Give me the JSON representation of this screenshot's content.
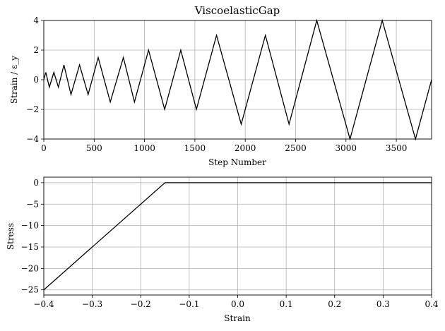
{
  "chart_data": [
    {
      "type": "line",
      "title": "ViscoelasticGap",
      "xlabel": "Step Number",
      "ylabel": "Strain / ε_y",
      "xlim": [
        0,
        3850
      ],
      "ylim": [
        -4,
        4
      ],
      "xticks": [
        0,
        500,
        1000,
        1500,
        2000,
        2500,
        3000,
        3500
      ],
      "yticks": [
        -4,
        -2,
        0,
        2,
        4
      ],
      "xtick_labels": [
        "0",
        "500",
        "1000",
        "1500",
        "2000",
        "2500",
        "3000",
        "3500"
      ],
      "ytick_labels": [
        "−4",
        "−2",
        "0",
        "2",
        "4"
      ],
      "grid": true,
      "series": [
        {
          "x": [
            0,
            20,
            55,
            100,
            145,
            200,
            270,
            355,
            440,
            540,
            660,
            790,
            900,
            1040,
            1200,
            1360,
            1515,
            1715,
            1960,
            2200,
            2435,
            2710,
            3040,
            3360,
            3690,
            3850
          ],
          "y": [
            0,
            0.5,
            -0.5,
            0.5,
            -0.5,
            1,
            -1,
            1,
            -1,
            1.5,
            -1.5,
            1.5,
            -1.5,
            2,
            -2,
            2,
            -2,
            3,
            -3,
            3,
            -3,
            4,
            -4,
            4,
            -4,
            0
          ]
        }
      ]
    },
    {
      "type": "line",
      "title": "",
      "xlabel": "Strain",
      "ylabel": "Stress",
      "xlim": [
        -0.4,
        0.4
      ],
      "ylim": [
        -26.2,
        1.3
      ],
      "xticks": [
        -0.4,
        -0.3,
        -0.2,
        -0.1,
        0.0,
        0.1,
        0.2,
        0.3,
        0.4
      ],
      "yticks": [
        0,
        -5,
        -10,
        -15,
        -20,
        -25
      ],
      "xtick_labels": [
        "−0.4",
        "−0.3",
        "−0.2",
        "−0.1",
        "0.0",
        "0.1",
        "0.2",
        "0.3",
        "0.4"
      ],
      "ytick_labels": [
        "0",
        "−5",
        "−10",
        "−15",
        "−20",
        "−25"
      ],
      "grid": true,
      "series": [
        {
          "x": [
            -0.4,
            -0.15,
            0.4
          ],
          "y": [
            -25,
            0,
            0
          ]
        }
      ]
    }
  ]
}
